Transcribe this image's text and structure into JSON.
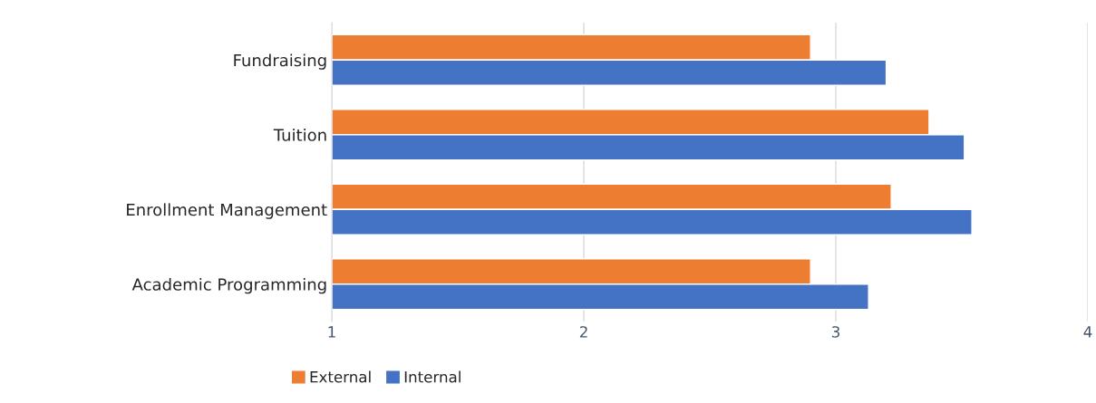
{
  "chart_data": {
    "type": "bar",
    "orientation": "horizontal",
    "categories": [
      "Fundraising",
      "Tuition",
      "Enrollment Management",
      "Academic Programming"
    ],
    "series": [
      {
        "name": "External",
        "color": "#ed7d31",
        "values": [
          2.9,
          3.37,
          3.22,
          2.9
        ]
      },
      {
        "name": "Internal",
        "color": "#4472c4",
        "values": [
          3.2,
          3.51,
          3.54,
          3.13
        ]
      }
    ],
    "xlim": [
      1,
      4
    ],
    "xticks": [
      1,
      2,
      3,
      4
    ],
    "grid": "x",
    "legend": "bottom"
  }
}
